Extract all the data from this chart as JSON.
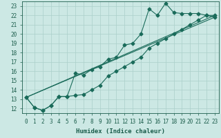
{
  "background_color": "#cce8e4",
  "grid_color": "#aacfca",
  "line_color": "#1a6b5a",
  "xlim": [
    -0.5,
    23.5
  ],
  "ylim": [
    11.5,
    23.5
  ],
  "xlabel": "Humidex (Indice chaleur)",
  "xticks": [
    0,
    1,
    2,
    3,
    4,
    5,
    6,
    7,
    8,
    9,
    10,
    11,
    12,
    13,
    14,
    15,
    16,
    17,
    18,
    19,
    20,
    21,
    22,
    23
  ],
  "yticks": [
    12,
    13,
    14,
    15,
    16,
    17,
    18,
    19,
    20,
    21,
    22,
    23
  ],
  "series1_x": [
    0,
    1,
    2,
    3,
    4,
    5,
    6,
    7,
    8,
    9,
    10,
    11,
    12,
    13,
    14,
    15,
    16,
    17,
    18,
    19,
    20,
    21,
    22,
    23
  ],
  "series1_y": [
    13.2,
    12.1,
    11.8,
    12.3,
    13.3,
    13.3,
    15.8,
    15.6,
    16.2,
    16.5,
    17.3,
    17.5,
    18.8,
    19.0,
    20.0,
    22.7,
    22.0,
    23.3,
    22.3,
    22.2,
    22.2,
    22.2,
    22.0,
    21.8
  ],
  "series2_x": [
    0,
    1,
    2,
    3,
    4,
    5,
    6,
    7,
    8,
    9,
    10,
    11,
    12,
    13,
    14,
    15,
    16,
    17,
    18,
    19,
    20,
    21,
    22,
    23
  ],
  "series2_y": [
    13.2,
    12.1,
    11.8,
    12.3,
    13.3,
    13.3,
    13.4,
    13.5,
    14.0,
    14.5,
    15.5,
    16.0,
    16.5,
    17.0,
    17.5,
    18.5,
    19.0,
    19.5,
    20.0,
    20.5,
    21.0,
    21.5,
    22.0,
    22.0
  ],
  "series3_x": [
    0,
    23
  ],
  "series3_y": [
    13.2,
    21.8
  ],
  "series4_x": [
    0,
    23
  ],
  "series4_y": [
    13.2,
    22.0
  ],
  "marker": "D",
  "markersize": 2.5,
  "linewidth": 0.8,
  "font_color": "#1a5c4a",
  "font_size": 5.5,
  "label_fontsize": 6.5
}
